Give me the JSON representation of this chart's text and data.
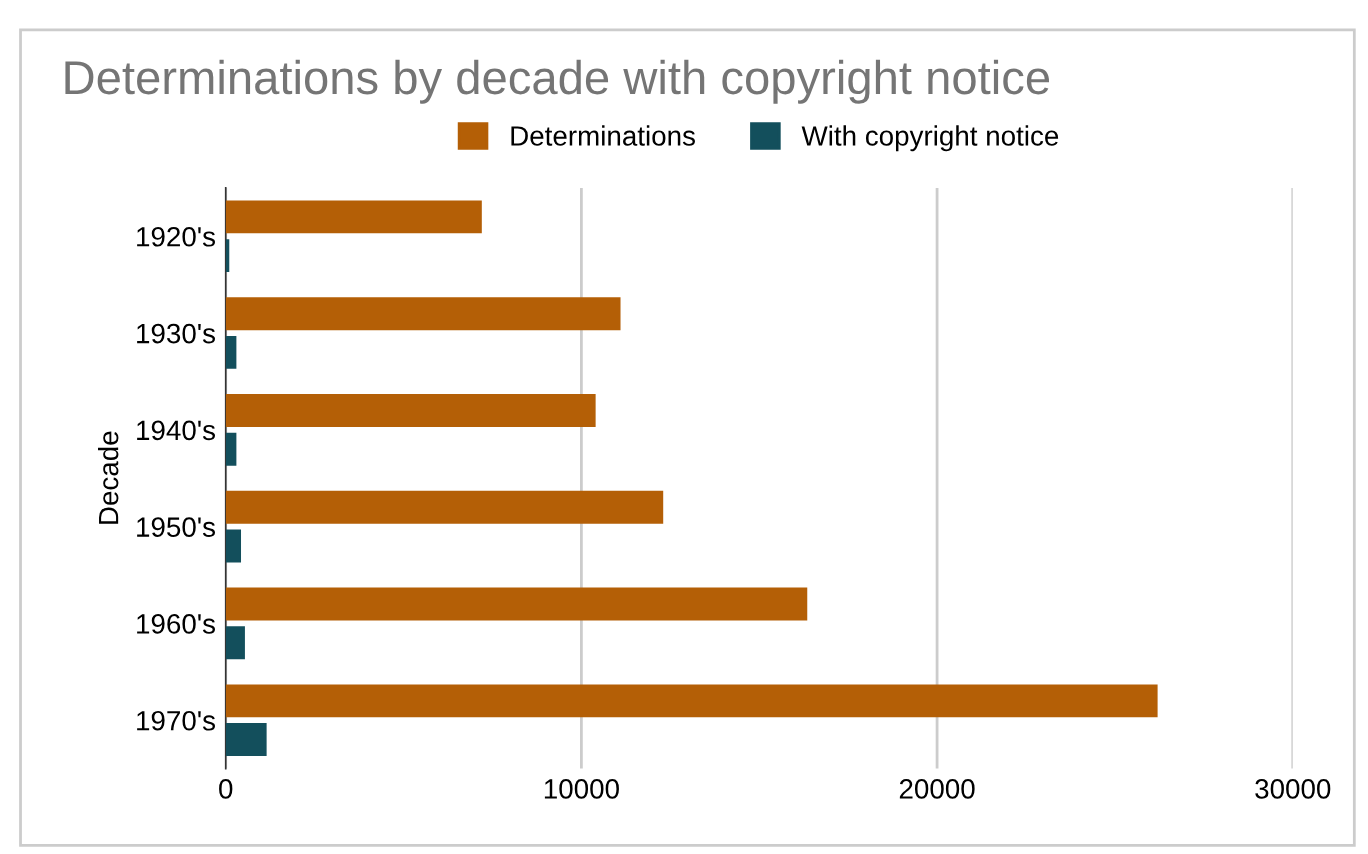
{
  "chart_data": {
    "type": "bar",
    "orientation": "horizontal",
    "title": "Determinations by decade with copyright notice",
    "ylabel": "Decade",
    "categories": [
      "1920's",
      "1930's",
      "1940's",
      "1950's",
      "1960's",
      "1970's"
    ],
    "series": [
      {
        "name": "Determinations",
        "color": "#b45f06",
        "values": [
          7200,
          11100,
          10400,
          12300,
          16350,
          26200
        ]
      },
      {
        "name": "With copyright notice",
        "color": "#134f5c",
        "values": [
          100,
          300,
          300,
          430,
          540,
          1150
        ]
      }
    ],
    "xlim": [
      0,
      30000
    ],
    "xticks": [
      0,
      10000,
      20000,
      30000
    ],
    "grid": "x",
    "legend": "top"
  }
}
